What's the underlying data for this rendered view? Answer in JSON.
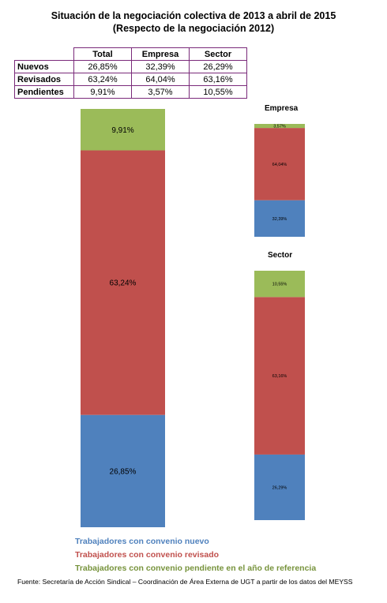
{
  "header": {
    "title": "Situación de la negociación colectiva de 2013 a abril de 2015",
    "subtitle": "(Respecto de la negociación 2012)"
  },
  "table": {
    "columns": [
      "Total",
      "Empresa",
      "Sector"
    ],
    "rows": [
      {
        "label": "Nuevos",
        "values": [
          "26,85%",
          "32,39%",
          "26,29%"
        ]
      },
      {
        "label": "Revisados",
        "values": [
          "63,24%",
          "64,04%",
          "63,16%"
        ]
      },
      {
        "label": "Pendientes",
        "values": [
          "9,91%",
          "3,57%",
          "10,55%"
        ]
      }
    ]
  },
  "colors": {
    "nuevo": "#4f81bd",
    "revisado": "#c0504d",
    "pendiente": "#9bbb59"
  },
  "chart_data": [
    {
      "type": "bar",
      "title": "",
      "stacked": true,
      "series": [
        {
          "values": [
            26.85
          ],
          "labels": [
            "26,85%"
          ],
          "color": "#4f81bd"
        },
        {
          "values": [
            63.24
          ],
          "labels": [
            "63,24%"
          ],
          "color": "#c0504d"
        },
        {
          "values": [
            9.91
          ],
          "labels": [
            "9,91%"
          ],
          "color": "#9bbb59"
        }
      ],
      "ylim": [
        0,
        100
      ]
    },
    {
      "type": "bar",
      "title": "Empresa",
      "stacked": true,
      "series": [
        {
          "values": [
            32.39
          ],
          "labels": [
            "32,39%"
          ],
          "color": "#4f81bd"
        },
        {
          "values": [
            64.04
          ],
          "labels": [
            "64,04%"
          ],
          "color": "#c0504d"
        },
        {
          "values": [
            3.57
          ],
          "labels": [
            "3,57%"
          ],
          "color": "#9bbb59"
        }
      ],
      "ylim": [
        0,
        100
      ]
    },
    {
      "type": "bar",
      "title": "Sector",
      "stacked": true,
      "series": [
        {
          "values": [
            26.29
          ],
          "labels": [
            "26,29%"
          ],
          "color": "#4f81bd"
        },
        {
          "values": [
            63.16
          ],
          "labels": [
            "63,16%"
          ],
          "color": "#c0504d"
        },
        {
          "values": [
            10.55
          ],
          "labels": [
            "10,55%"
          ],
          "color": "#9bbb59"
        }
      ],
      "ylim": [
        0,
        100
      ]
    }
  ],
  "legend": {
    "nuevo": "Trabajadores con convenio nuevo",
    "revisado": "Trabajadores con convenio revisado",
    "pendiente": "Trabajadores con convenio pendiente en el año de referencia"
  },
  "source": "Fuente: Secretaría de Acción Sindical – Coordinación de Área Externa de UGT a partir de los datos del MEYSS"
}
